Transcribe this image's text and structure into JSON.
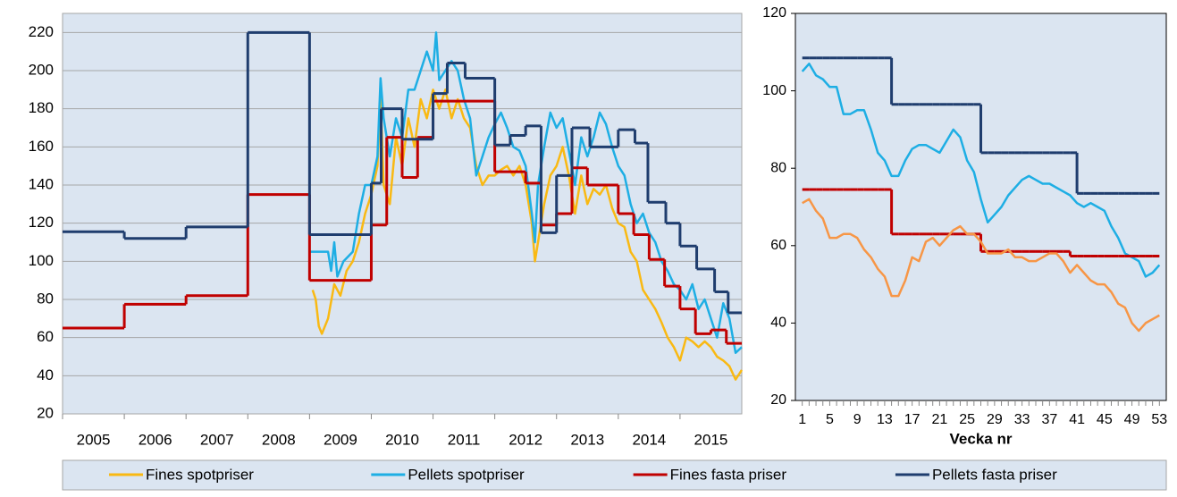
{
  "chart_data": [
    {
      "type": "line",
      "categories": [
        "2005",
        "2006",
        "2007",
        "2008",
        "2009",
        "2010",
        "2011",
        "2012",
        "2013",
        "2014",
        "2015"
      ],
      "xlim": [
        2005,
        2016
      ],
      "ylim": [
        20,
        230
      ],
      "yticks": [
        20,
        40,
        60,
        80,
        100,
        120,
        140,
        160,
        180,
        200,
        220
      ],
      "grid": true,
      "legend": "bottom",
      "series": [
        {
          "name": "Fines spotpriser",
          "color": "#f9b913",
          "step": false,
          "x": [
            2009.05,
            2009.1,
            2009.15,
            2009.2,
            2009.3,
            2009.4,
            2009.5,
            2009.6,
            2009.7,
            2009.8,
            2009.9,
            2010.0,
            2010.1,
            2010.15,
            2010.2,
            2010.3,
            2010.4,
            2010.5,
            2010.6,
            2010.7,
            2010.8,
            2010.9,
            2011.0,
            2011.1,
            2011.2,
            2011.3,
            2011.4,
            2011.5,
            2011.6,
            2011.7,
            2011.8,
            2011.9,
            2012.0,
            2012.1,
            2012.2,
            2012.3,
            2012.4,
            2012.5,
            2012.6,
            2012.65,
            2012.7,
            2012.8,
            2012.9,
            2013.0,
            2013.1,
            2013.2,
            2013.3,
            2013.4,
            2013.5,
            2013.6,
            2013.7,
            2013.8,
            2013.9,
            2014.0,
            2014.1,
            2014.2,
            2014.3,
            2014.4,
            2014.5,
            2014.6,
            2014.7,
            2014.8,
            2014.9,
            2015.0,
            2015.1,
            2015.2,
            2015.3,
            2015.4,
            2015.5,
            2015.6,
            2015.7,
            2015.8,
            2015.9,
            2016.0
          ],
          "values": [
            85,
            80,
            66,
            62,
            70,
            88,
            82,
            95,
            100,
            110,
            125,
            135,
            150,
            185,
            140,
            130,
            165,
            150,
            175,
            160,
            185,
            175,
            190,
            180,
            190,
            175,
            185,
            175,
            170,
            150,
            140,
            145,
            145,
            148,
            150,
            145,
            150,
            140,
            120,
            100,
            110,
            130,
            145,
            150,
            160,
            145,
            125,
            145,
            130,
            138,
            135,
            140,
            128,
            120,
            118,
            105,
            100,
            85,
            80,
            75,
            68,
            60,
            55,
            48,
            60,
            58,
            55,
            58,
            55,
            50,
            48,
            45,
            38,
            43
          ]
        },
        {
          "name": "Pellets spotpriser",
          "color": "#1eaee4",
          "step": false,
          "x": [
            2009.0,
            2009.3,
            2009.35,
            2009.4,
            2009.45,
            2009.55,
            2009.7,
            2009.8,
            2009.9,
            2010.0,
            2010.1,
            2010.15,
            2010.2,
            2010.3,
            2010.4,
            2010.5,
            2010.6,
            2010.7,
            2010.8,
            2010.9,
            2011.0,
            2011.05,
            2011.1,
            2011.2,
            2011.3,
            2011.4,
            2011.5,
            2011.6,
            2011.7,
            2011.8,
            2011.9,
            2012.0,
            2012.1,
            2012.2,
            2012.3,
            2012.4,
            2012.5,
            2012.6,
            2012.65,
            2012.7,
            2012.8,
            2012.9,
            2013.0,
            2013.1,
            2013.2,
            2013.3,
            2013.4,
            2013.5,
            2013.6,
            2013.7,
            2013.8,
            2013.9,
            2014.0,
            2014.1,
            2014.2,
            2014.3,
            2014.4,
            2014.5,
            2014.6,
            2014.7,
            2014.8,
            2014.9,
            2015.0,
            2015.1,
            2015.2,
            2015.3,
            2015.4,
            2015.5,
            2015.6,
            2015.7,
            2015.8,
            2015.9,
            2016.0
          ],
          "values": [
            105,
            105,
            95,
            110,
            92,
            100,
            105,
            125,
            140,
            140,
            155,
            196,
            175,
            155,
            175,
            165,
            190,
            190,
            200,
            210,
            200,
            220,
            195,
            200,
            205,
            200,
            185,
            175,
            145,
            155,
            165,
            172,
            178,
            170,
            160,
            158,
            150,
            125,
            110,
            140,
            160,
            178,
            170,
            175,
            158,
            140,
            165,
            155,
            165,
            178,
            172,
            160,
            150,
            145,
            130,
            120,
            125,
            115,
            110,
            100,
            95,
            88,
            85,
            80,
            88,
            75,
            80,
            70,
            60,
            78,
            70,
            52,
            55
          ]
        },
        {
          "name": "Fines fasta priser",
          "color": "#c00000",
          "step": true,
          "x": [
            2005.0,
            2006.0,
            2007.0,
            2008.0,
            2009.0,
            2010.0,
            2010.25,
            2010.5,
            2010.75,
            2011.0,
            2012.0,
            2012.5,
            2012.75,
            2013.0,
            2013.25,
            2013.5,
            2014.0,
            2014.25,
            2014.5,
            2014.75,
            2015.0,
            2015.25,
            2015.5,
            2015.75,
            2016.0
          ],
          "values": [
            65,
            77.5,
            82,
            135,
            90,
            119,
            165,
            144,
            165,
            184,
            147,
            141,
            119,
            125,
            149,
            140,
            125,
            114,
            101,
            87,
            75,
            62,
            64,
            57,
            57
          ]
        },
        {
          "name": "Pellets fasta  priser",
          "color": "#1f3d6e",
          "step": true,
          "x": [
            2005.0,
            2006.0,
            2007.0,
            2008.0,
            2009.0,
            2010.0,
            2010.16,
            2010.5,
            2011.0,
            2011.23,
            2011.52,
            2012.0,
            2012.25,
            2012.5,
            2012.75,
            2013.0,
            2013.25,
            2013.54,
            2014.0,
            2014.27,
            2014.48,
            2014.77,
            2015.0,
            2015.27,
            2015.56,
            2015.78,
            2016.0
          ],
          "values": [
            115.5,
            112,
            118,
            220,
            114,
            141,
            180,
            164,
            188,
            204,
            196,
            161,
            166,
            171,
            115,
            145,
            170,
            160,
            169,
            162,
            131,
            120,
            108,
            96,
            84,
            73,
            73
          ]
        }
      ]
    },
    {
      "type": "line",
      "x_label": "Vecka nr",
      "xlim": [
        0,
        54
      ],
      "xticks": [
        1,
        5,
        9,
        13,
        17,
        21,
        25,
        29,
        33,
        37,
        41,
        45,
        49,
        53
      ],
      "ylim": [
        20,
        120
      ],
      "yticks": [
        20,
        40,
        60,
        80,
        100,
        120
      ],
      "grid": false,
      "x": [
        1,
        2,
        3,
        4,
        5,
        6,
        7,
        8,
        9,
        10,
        11,
        12,
        13,
        14,
        15,
        16,
        17,
        18,
        19,
        20,
        21,
        22,
        23,
        24,
        25,
        26,
        27,
        28,
        29,
        30,
        31,
        32,
        33,
        34,
        35,
        36,
        37,
        38,
        39,
        40,
        41,
        42,
        43,
        44,
        45,
        46,
        47,
        48,
        49,
        50,
        51,
        52,
        53
      ],
      "series": [
        {
          "color": "#1f3d6e",
          "step": true,
          "values": [
            108.5,
            108.5,
            108.5,
            108.5,
            108.5,
            108.5,
            108.5,
            108.5,
            108.5,
            108.5,
            108.5,
            108.5,
            108.5,
            96.5,
            96.5,
            96.5,
            96.5,
            96.5,
            96.5,
            96.5,
            96.5,
            96.5,
            96.5,
            96.5,
            96.5,
            96.5,
            84,
            84,
            84,
            84,
            84,
            84,
            84,
            84,
            84,
            84,
            84,
            84,
            84,
            84,
            73.5,
            73.5,
            73.5,
            73.5,
            73.5,
            73.5,
            73.5,
            73.5,
            73.5,
            73.5,
            73.5,
            73.5,
            73.5
          ]
        },
        {
          "color": "#1eaee4",
          "step": false,
          "values": [
            105,
            107,
            104,
            103,
            101,
            101,
            94,
            94,
            95,
            95,
            90,
            84,
            82,
            78,
            78,
            82,
            85,
            86,
            86,
            85,
            84,
            87,
            90,
            88,
            82,
            79,
            72,
            66,
            68,
            70,
            73,
            75,
            77,
            78,
            77,
            76,
            76,
            75,
            74,
            73,
            71,
            70,
            71,
            70,
            69,
            65,
            62,
            58,
            57,
            56,
            52,
            53,
            55
          ]
        },
        {
          "color": "#c00000",
          "step": true,
          "values": [
            74.5,
            74.5,
            74.5,
            74.5,
            74.5,
            74.5,
            74.5,
            74.5,
            74.5,
            74.5,
            74.5,
            74.5,
            74.5,
            63,
            63,
            63,
            63,
            63,
            63,
            63,
            63,
            63,
            63,
            63,
            63,
            63,
            58.5,
            58.5,
            58.5,
            58.5,
            58.5,
            58.5,
            58.5,
            58.5,
            58.5,
            58.5,
            58.5,
            58.5,
            58.5,
            57.3,
            57.3,
            57.3,
            57.3,
            57.3,
            57.3,
            57.3,
            57.3,
            57.3,
            57.3,
            57.3,
            57.3,
            57.3,
            57.3
          ]
        },
        {
          "color": "#f79646",
          "step": false,
          "values": [
            71,
            72,
            69,
            67,
            62,
            62,
            63,
            63,
            62,
            59,
            57,
            54,
            52,
            47,
            47,
            51,
            57,
            56,
            61,
            62,
            60,
            62,
            64,
            65,
            63,
            63,
            61,
            58,
            58,
            58,
            59,
            57,
            57,
            56,
            56,
            57,
            58,
            58,
            56,
            53,
            55,
            53,
            51,
            50,
            50,
            48,
            45,
            44,
            40,
            38,
            40,
            41,
            42
          ]
        }
      ]
    }
  ]
}
